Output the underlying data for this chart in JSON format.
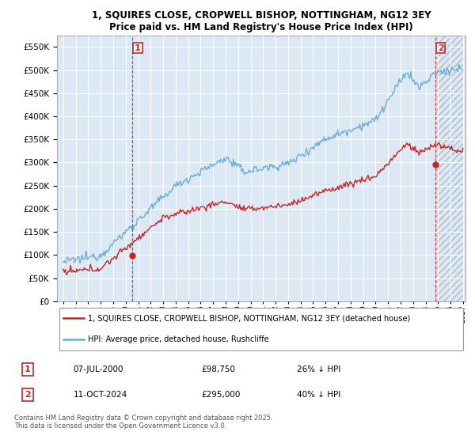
{
  "title": "1, SQUIRES CLOSE, CROPWELL BISHOP, NOTTINGHAM, NG12 3EY",
  "subtitle": "Price paid vs. HM Land Registry's House Price Index (HPI)",
  "legend_line1": "1, SQUIRES CLOSE, CROPWELL BISHOP, NOTTINGHAM, NG12 3EY (detached house)",
  "legend_line2": "HPI: Average price, detached house, Rushcliffe",
  "annotation1_label": "1",
  "annotation1_date": "07-JUL-2000",
  "annotation1_price": "£98,750",
  "annotation1_hpi": "26% ↓ HPI",
  "annotation2_label": "2",
  "annotation2_date": "11-OCT-2024",
  "annotation2_price": "£295,000",
  "annotation2_hpi": "40% ↓ HPI",
  "footer": "Contains HM Land Registry data © Crown copyright and database right 2025.\nThis data is licensed under the Open Government Licence v3.0.",
  "sale1_x": 2000.52,
  "sale1_y": 98750,
  "sale2_x": 2024.78,
  "sale2_y": 295000,
  "hpi_color": "#6aaed6",
  "price_color": "#cc2222",
  "background_color": "#dce9f5",
  "plot_bg": "#dce9f5",
  "ylim": [
    0,
    575000
  ],
  "xlim": [
    1994.5,
    2027.2
  ],
  "yticks": [
    0,
    50000,
    100000,
    150000,
    200000,
    250000,
    300000,
    350000,
    400000,
    450000,
    500000,
    550000
  ],
  "xtick_years": [
    1995,
    1996,
    1997,
    1998,
    1999,
    2000,
    2001,
    2002,
    2003,
    2004,
    2005,
    2006,
    2007,
    2008,
    2009,
    2010,
    2011,
    2012,
    2013,
    2014,
    2015,
    2016,
    2017,
    2018,
    2019,
    2020,
    2021,
    2022,
    2023,
    2024,
    2025,
    2026,
    2027
  ]
}
